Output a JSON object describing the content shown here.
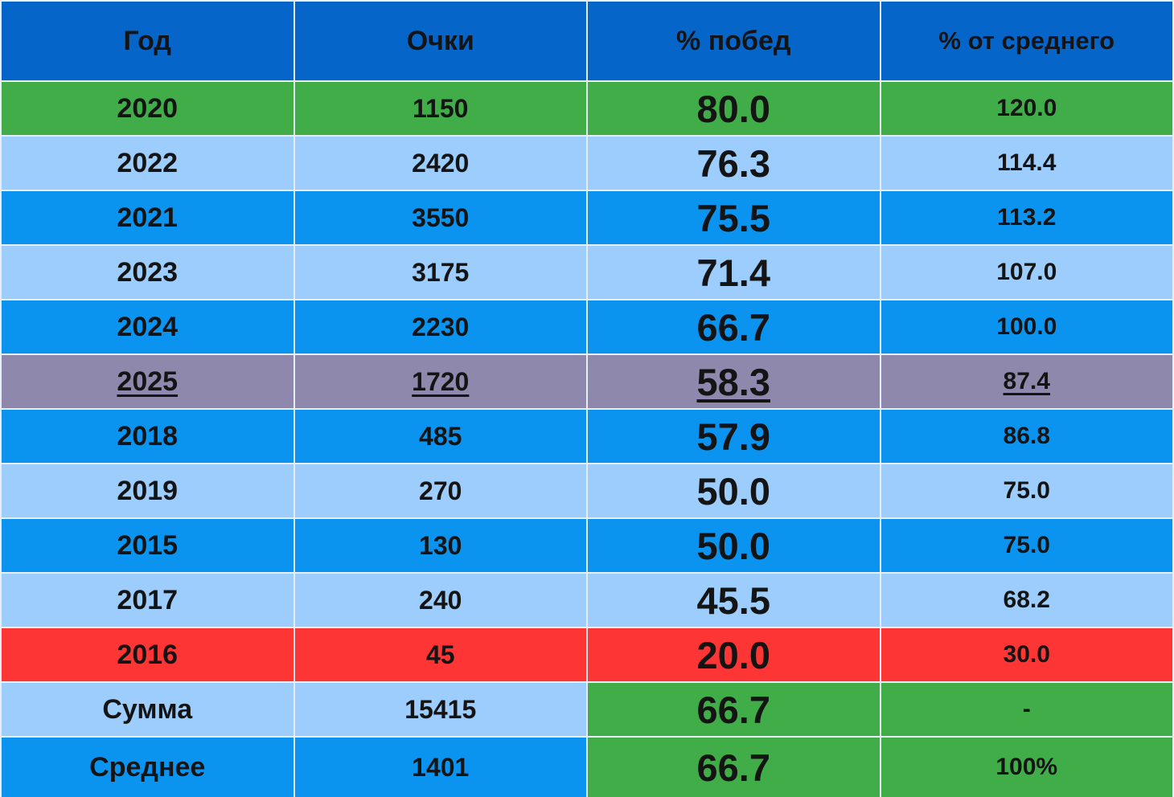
{
  "table": {
    "header": [
      "Год",
      "Очки",
      "% побед",
      "% от среднего"
    ],
    "rows": [
      [
        "2020",
        "1150",
        "80.0",
        "120.0"
      ],
      [
        "2022",
        "2420",
        "76.3",
        "114.4"
      ],
      [
        "2021",
        "3550",
        "75.5",
        "113.2"
      ],
      [
        "2023",
        "3175",
        "71.4",
        "107.0"
      ],
      [
        "2024",
        "2230",
        "66.7",
        "100.0"
      ],
      [
        "2025",
        "1720",
        "58.3",
        "87.4"
      ],
      [
        "2018",
        "485",
        "57.9",
        "86.8"
      ],
      [
        "2019",
        "270",
        "50.0",
        "75.0"
      ],
      [
        "2015",
        "130",
        "50.0",
        "75.0"
      ],
      [
        "2017",
        "240",
        "45.5",
        "68.2"
      ],
      [
        "2016",
        "45",
        "20.0",
        "30.0"
      ],
      [
        "Сумма",
        "15415",
        "66.7",
        "-"
      ],
      [
        "Среднее",
        "1401",
        "66.7",
        "100%"
      ]
    ]
  }
}
